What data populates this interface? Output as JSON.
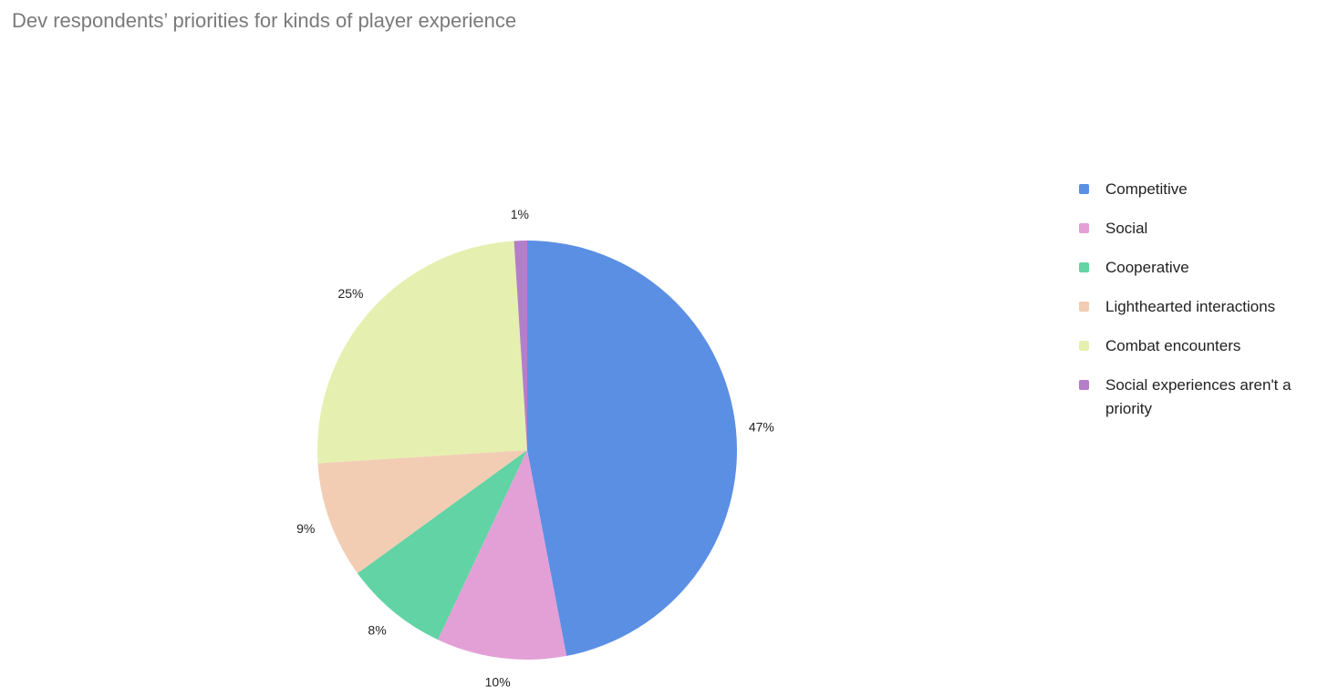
{
  "chart_data": {
    "type": "pie",
    "title": "Dev respondents’ priorities for kinds of player experience",
    "categories": [
      "Competitive",
      "Social",
      "Cooperative",
      "Lighthearted interactions",
      "Combat encounters",
      "Social experiences aren't a priority"
    ],
    "values": [
      47,
      10,
      8,
      9,
      25,
      1
    ],
    "value_labels": [
      "47%",
      "10%",
      "8%",
      "9%",
      "25%",
      "1%"
    ],
    "colors": [
      "#5b8fe3",
      "#e3a0d6",
      "#62d3a4",
      "#f2cdb3",
      "#e5f0b0",
      "#b57ec8"
    ],
    "legend": "right"
  }
}
